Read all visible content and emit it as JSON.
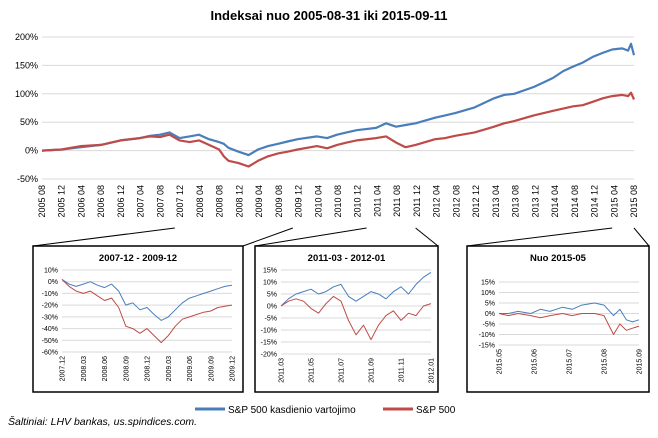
{
  "title": "Indeksai nuo 2005-08-31 iki 2015-09-11",
  "source": "Šaltiniai: LHV bankas, us.spindices.com.",
  "colors": {
    "blue": "#4a7ebb",
    "red": "#be4b48",
    "grid": "#d9d9d9",
    "box": "#000000"
  },
  "chart_data": [
    {
      "type": "line",
      "title": "Indeksai nuo 2005-08-31 iki 2015-09-11",
      "ylim": [
        -50,
        200
      ],
      "yticks": [
        "200%",
        "150%",
        "100%",
        "50%",
        "0%",
        "-50%"
      ],
      "ytick_values": [
        200,
        150,
        100,
        50,
        0,
        -50
      ],
      "xticks": [
        "2005 08",
        "2005 12",
        "2006 04",
        "2006 08",
        "2006 12",
        "2007 04",
        "2007 08",
        "2007 12",
        "2008 04",
        "2008 08",
        "2008 12",
        "2009 04",
        "2009 08",
        "2009 12",
        "2010 04",
        "2010 08",
        "2010 12",
        "2011 04",
        "2011 08",
        "2011 12",
        "2012 04",
        "2012 08",
        "2012 12",
        "2013 04",
        "2013 08",
        "2013 12",
        "2014 04",
        "2014 08",
        "2014 12",
        "2015 04",
        "2015 08"
      ],
      "x_range": [
        2005.67,
        2015.7
      ],
      "grid": true,
      "legend_position": "bottom",
      "series": [
        {
          "name": "S&P 500 kasdienio vartojimo",
          "x": [
            2005.67,
            2006.0,
            2006.33,
            2006.67,
            2007.0,
            2007.33,
            2007.5,
            2007.67,
            2007.83,
            2008.0,
            2008.17,
            2008.33,
            2008.5,
            2008.67,
            2008.75,
            2008.83,
            2009.0,
            2009.17,
            2009.33,
            2009.5,
            2009.67,
            2009.83,
            2010.0,
            2010.33,
            2010.5,
            2010.67,
            2010.83,
            2011.0,
            2011.33,
            2011.5,
            2011.67,
            2011.83,
            2012.0,
            2012.33,
            2012.5,
            2012.67,
            2013.0,
            2013.33,
            2013.5,
            2013.67,
            2014.0,
            2014.17,
            2014.33,
            2014.5,
            2014.67,
            2014.83,
            2015.0,
            2015.17,
            2015.33,
            2015.5,
            2015.6,
            2015.65,
            2015.7
          ],
          "values": [
            0,
            2,
            6,
            10,
            18,
            22,
            26,
            28,
            32,
            22,
            25,
            28,
            20,
            15,
            12,
            5,
            -2,
            -8,
            2,
            8,
            12,
            16,
            20,
            25,
            22,
            28,
            32,
            36,
            40,
            48,
            42,
            45,
            48,
            58,
            62,
            66,
            76,
            92,
            98,
            100,
            112,
            120,
            128,
            140,
            148,
            155,
            165,
            172,
            178,
            180,
            176,
            188,
            168
          ]
        },
        {
          "name": "S&P 500",
          "x": [
            2005.67,
            2006.0,
            2006.33,
            2006.67,
            2007.0,
            2007.33,
            2007.5,
            2007.67,
            2007.83,
            2008.0,
            2008.17,
            2008.33,
            2008.5,
            2008.67,
            2008.75,
            2008.83,
            2009.0,
            2009.17,
            2009.33,
            2009.5,
            2009.67,
            2009.83,
            2010.0,
            2010.33,
            2010.5,
            2010.67,
            2010.83,
            2011.0,
            2011.33,
            2011.5,
            2011.67,
            2011.83,
            2012.0,
            2012.33,
            2012.5,
            2012.67,
            2013.0,
            2013.33,
            2013.5,
            2013.67,
            2014.0,
            2014.17,
            2014.33,
            2014.5,
            2014.67,
            2014.83,
            2015.0,
            2015.17,
            2015.33,
            2015.5,
            2015.6,
            2015.65,
            2015.7
          ],
          "values": [
            0,
            2,
            8,
            10,
            18,
            22,
            25,
            24,
            28,
            18,
            15,
            18,
            10,
            2,
            -10,
            -18,
            -22,
            -28,
            -18,
            -10,
            -5,
            -2,
            2,
            8,
            4,
            10,
            14,
            18,
            22,
            25,
            14,
            6,
            10,
            20,
            22,
            26,
            32,
            42,
            48,
            52,
            62,
            66,
            70,
            74,
            78,
            80,
            86,
            92,
            96,
            98,
            96,
            102,
            90
          ]
        }
      ]
    },
    {
      "type": "line",
      "title": "2007-12 - 2009-12",
      "ylim": [
        -60,
        10
      ],
      "yticks": [
        "10%",
        "0%",
        "-10%",
        "-20%",
        "-30%",
        "-40%",
        "-50%",
        "-60%"
      ],
      "ytick_values": [
        10,
        0,
        -10,
        -20,
        -30,
        -40,
        -50,
        -60
      ],
      "xticks": [
        "2007.12",
        "2008.03",
        "2008.06",
        "2008.09",
        "2008.12",
        "2009.03",
        "2009.06",
        "2009.09",
        "2009.12"
      ],
      "x_range": [
        0,
        24
      ],
      "grid": true,
      "series": [
        {
          "name": "S&P 500 kasdienio vartojimo",
          "x": [
            0,
            1,
            2,
            3,
            4,
            5,
            6,
            7,
            8,
            9,
            10,
            11,
            12,
            13,
            14,
            15,
            16,
            17,
            18,
            19,
            20,
            21,
            22,
            23,
            24
          ],
          "values": [
            2,
            -2,
            -4,
            -2,
            0,
            -3,
            -5,
            -2,
            -8,
            -20,
            -18,
            -24,
            -22,
            -28,
            -33,
            -30,
            -24,
            -18,
            -14,
            -12,
            -10,
            -8,
            -6,
            -4,
            -3
          ]
        },
        {
          "name": "S&P 500",
          "x": [
            0,
            1,
            2,
            3,
            4,
            5,
            6,
            7,
            8,
            9,
            10,
            11,
            12,
            13,
            14,
            15,
            16,
            17,
            18,
            19,
            20,
            21,
            22,
            23,
            24
          ],
          "values": [
            2,
            -4,
            -8,
            -10,
            -8,
            -12,
            -16,
            -14,
            -22,
            -38,
            -40,
            -44,
            -40,
            -46,
            -52,
            -46,
            -38,
            -32,
            -30,
            -28,
            -26,
            -25,
            -22,
            -21,
            -20
          ]
        }
      ]
    },
    {
      "type": "line",
      "title": "2011-03 - 2012-01",
      "ylim": [
        -20,
        15
      ],
      "yticks": [
        "15%",
        "10%",
        "5%",
        "0%",
        "-5%",
        "-10%",
        "-15%",
        "-20%"
      ],
      "ytick_values": [
        15,
        10,
        5,
        0,
        -5,
        -10,
        -15,
        -20
      ],
      "xticks": [
        "2011.03",
        "2011.05",
        "2011.07",
        "2011.09",
        "2011.11",
        "2012.01"
      ],
      "x_range": [
        0,
        10
      ],
      "grid": true,
      "series": [
        {
          "name": "S&P 500 kasdienio vartojimo",
          "x": [
            0,
            0.5,
            1,
            1.5,
            2,
            2.5,
            3,
            3.5,
            4,
            4.5,
            5,
            5.5,
            6,
            6.5,
            7,
            7.5,
            8,
            8.5,
            9,
            9.5,
            10
          ],
          "values": [
            0,
            3,
            5,
            6,
            7,
            5,
            6,
            8,
            9,
            4,
            2,
            4,
            6,
            5,
            3,
            6,
            8,
            5,
            9,
            12,
            14
          ]
        },
        {
          "name": "S&P 500",
          "x": [
            0,
            0.5,
            1,
            1.5,
            2,
            2.5,
            3,
            3.5,
            4,
            4.5,
            5,
            5.5,
            6,
            6.5,
            7,
            7.5,
            8,
            8.5,
            9,
            9.5,
            10
          ],
          "values": [
            0,
            2,
            3,
            2,
            -1,
            -3,
            1,
            4,
            2,
            -6,
            -12,
            -8,
            -14,
            -8,
            -4,
            -2,
            -6,
            -3,
            -4,
            0,
            1
          ]
        }
      ]
    },
    {
      "type": "line",
      "title": "Nuo 2015-05",
      "ylim": [
        -15,
        15
      ],
      "yticks": [
        "15%",
        "10%",
        "5%",
        "0%",
        "-5%",
        "-10%",
        "-15%"
      ],
      "ytick_values": [
        15,
        10,
        5,
        0,
        -5,
        -10,
        -15
      ],
      "xticks": [
        "2015.05",
        "2015.06",
        "2015.07",
        "2015.08",
        "2015.09"
      ],
      "x_range": [
        0,
        4.4
      ],
      "grid": true,
      "series": [
        {
          "name": "S&P 500 kasdienio vartojimo",
          "x": [
            0,
            0.3,
            0.6,
            1,
            1.3,
            1.6,
            2,
            2.3,
            2.6,
            3,
            3.3,
            3.6,
            3.8,
            4,
            4.2,
            4.4
          ],
          "values": [
            0,
            0,
            1,
            0,
            2,
            1,
            3,
            2,
            4,
            5,
            4,
            -1,
            2,
            -3,
            -4,
            -3
          ]
        },
        {
          "name": "S&P 500",
          "x": [
            0,
            0.3,
            0.6,
            1,
            1.3,
            1.6,
            2,
            2.3,
            2.6,
            3,
            3.3,
            3.6,
            3.8,
            4,
            4.2,
            4.4
          ],
          "values": [
            0,
            -1,
            0,
            -1,
            -2,
            -1,
            0,
            -1,
            0,
            0,
            -1,
            -10,
            -5,
            -8,
            -7,
            -6
          ]
        }
      ]
    }
  ]
}
